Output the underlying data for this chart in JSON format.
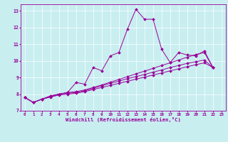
{
  "bg_color": "#c8eef0",
  "line_color": "#990099",
  "grid_color": "#aadddd",
  "xlim": [
    -0.5,
    23.5
  ],
  "ylim": [
    7,
    13.4
  ],
  "xticks": [
    0,
    1,
    2,
    3,
    4,
    5,
    6,
    7,
    8,
    9,
    10,
    11,
    12,
    13,
    14,
    15,
    16,
    17,
    18,
    19,
    20,
    21,
    22,
    23
  ],
  "yticks": [
    7,
    8,
    9,
    10,
    11,
    12,
    13
  ],
  "xlabel": "Windchill (Refroidissement éolien,°C)",
  "series_x": [
    0,
    1,
    2,
    3,
    4,
    5,
    6,
    7,
    8,
    9,
    10,
    11,
    12,
    13,
    14,
    15,
    16,
    17,
    18,
    19,
    20,
    21,
    22
  ],
  "series": [
    [
      7.8,
      7.5,
      7.7,
      7.9,
      8.0,
      8.1,
      8.7,
      8.6,
      9.6,
      9.4,
      10.3,
      10.5,
      11.9,
      13.1,
      12.5,
      12.5,
      10.7,
      9.9,
      10.5,
      10.35,
      10.3,
      10.6,
      9.6
    ],
    [
      7.8,
      7.5,
      7.7,
      7.85,
      8.0,
      8.1,
      8.15,
      8.25,
      8.4,
      8.55,
      8.72,
      8.88,
      9.05,
      9.22,
      9.38,
      9.55,
      9.72,
      9.88,
      10.05,
      10.22,
      10.38,
      10.5,
      9.6
    ],
    [
      7.8,
      7.5,
      7.7,
      7.85,
      8.0,
      8.05,
      8.1,
      8.2,
      8.35,
      8.5,
      8.65,
      8.78,
      8.93,
      9.05,
      9.18,
      9.32,
      9.45,
      9.6,
      9.72,
      9.85,
      9.95,
      10.05,
      9.6
    ],
    [
      7.8,
      7.5,
      7.7,
      7.82,
      7.95,
      8.0,
      8.05,
      8.15,
      8.28,
      8.4,
      8.52,
      8.65,
      8.77,
      8.9,
      9.02,
      9.15,
      9.27,
      9.4,
      9.52,
      9.65,
      9.77,
      9.88,
      9.6
    ]
  ],
  "tick_fontsize": 4.2,
  "xlabel_fontsize": 5.2,
  "marker_size": 2.0,
  "linewidth": 0.7
}
